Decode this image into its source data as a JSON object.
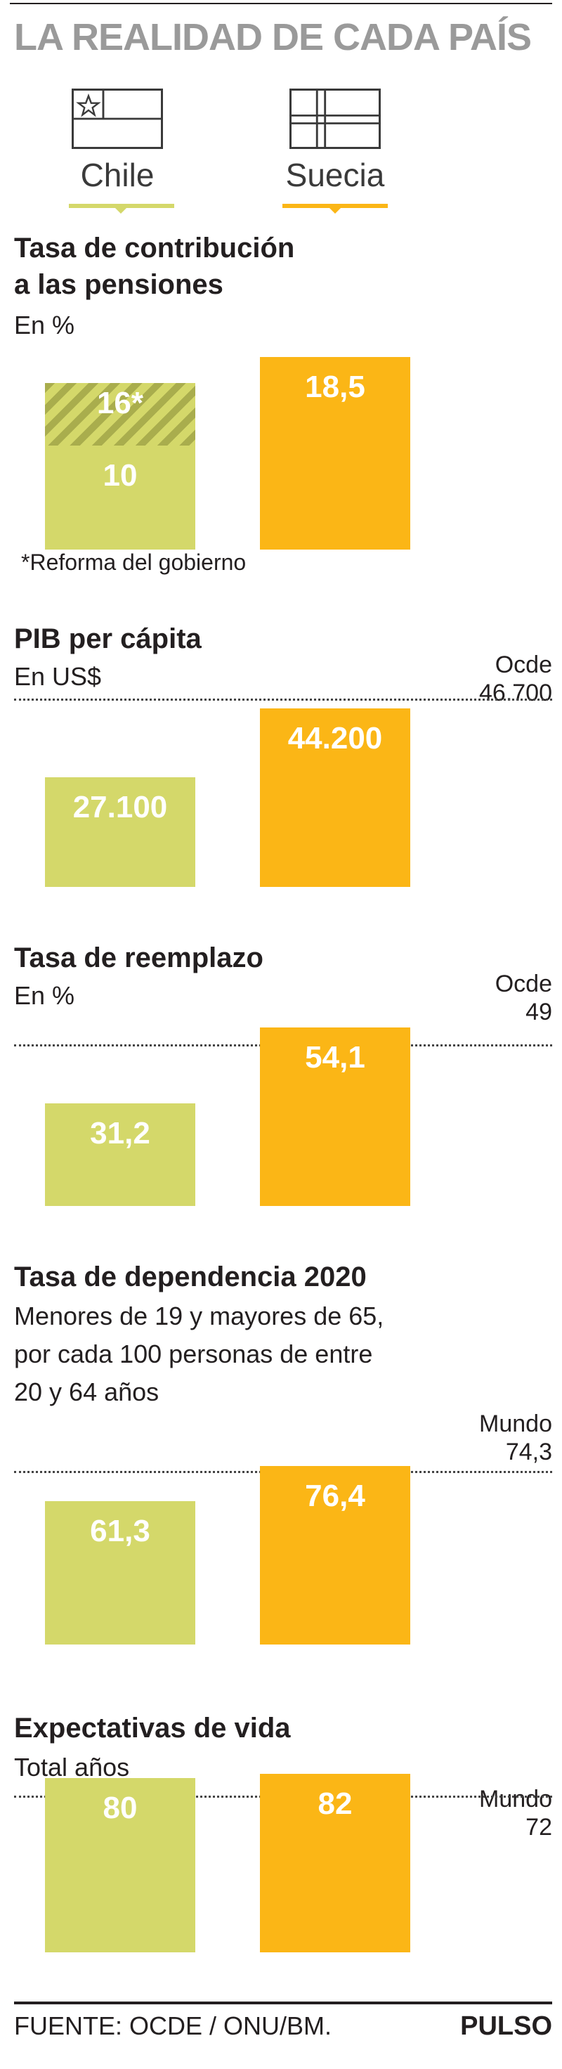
{
  "header": {
    "title": "LA REALIDAD DE CADA PAÍS"
  },
  "countries": [
    {
      "name": "Chile",
      "color": "#d4d86a"
    },
    {
      "name": "Suecia",
      "color": "#fbb616"
    }
  ],
  "chart_data": [
    {
      "type": "bar",
      "title": "Tasa de contribución a las pensiones",
      "title_lines": [
        "Tasa de contribución",
        "a las pensiones"
      ],
      "subtitle": "En %",
      "categories": [
        "Chile",
        "Suecia"
      ],
      "values": [
        10,
        18.5
      ],
      "labels": [
        "10",
        "18,5"
      ],
      "extra": {
        "category": "Chile",
        "value": 16,
        "label": "16*",
        "note": "*Reforma del gobierno"
      }
    },
    {
      "type": "bar",
      "title": "PIB per cápita",
      "subtitle": "En US$",
      "categories": [
        "Chile",
        "Suecia"
      ],
      "values": [
        27100,
        44200
      ],
      "labels": [
        "27.100",
        "44.200"
      ],
      "reference": {
        "name": "Ocde",
        "value": 46700,
        "label": "46.700"
      }
    },
    {
      "type": "bar",
      "title": "Tasa de reemplazo",
      "subtitle": "En %",
      "categories": [
        "Chile",
        "Suecia"
      ],
      "values": [
        31.2,
        54.1
      ],
      "labels": [
        "31,2",
        "54,1"
      ],
      "reference": {
        "name": "Ocde",
        "value": 49,
        "label": "49"
      }
    },
    {
      "type": "bar",
      "title": "Tasa de dependencia 2020",
      "subtitle_lines": [
        "Menores de 19 y mayores de 65,",
        "por cada 100 personas de entre",
        "20 y 64 años"
      ],
      "categories": [
        "Chile",
        "Suecia"
      ],
      "values": [
        61.3,
        76.4
      ],
      "labels": [
        "61,3",
        "76,4"
      ],
      "reference": {
        "name": "Mundo",
        "value": 74.3,
        "label": "74,3"
      }
    },
    {
      "type": "bar",
      "title": "Expectativas de vida",
      "subtitle": "Total años",
      "categories": [
        "Chile",
        "Suecia"
      ],
      "values": [
        80,
        82
      ],
      "labels": [
        "80",
        "82"
      ],
      "reference": {
        "name": "Mundo",
        "value": 72,
        "label": "72"
      }
    }
  ],
  "footer": {
    "source": "FUENTE: OCDE / ONU/BM.",
    "brand": "PULSO"
  }
}
